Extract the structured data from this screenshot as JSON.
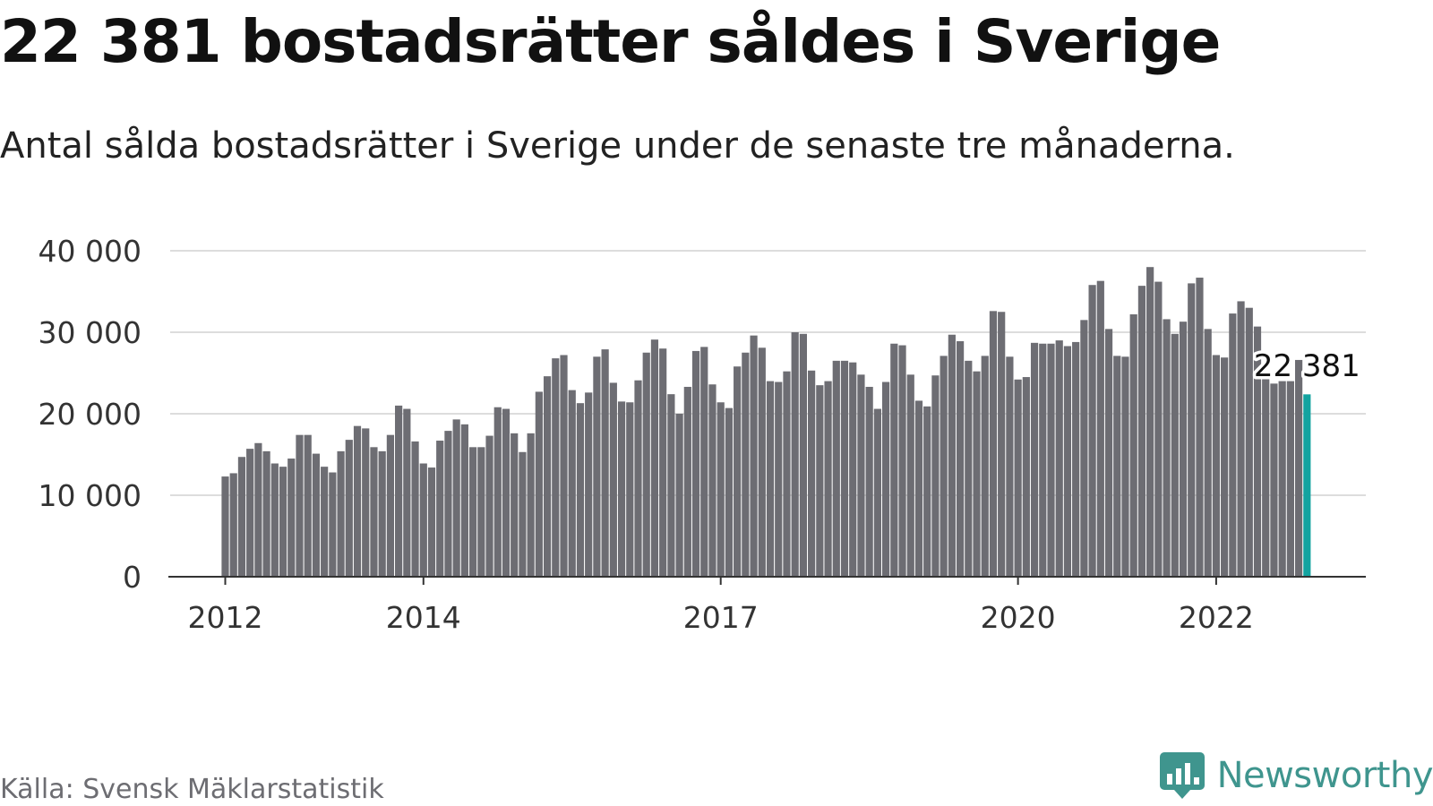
{
  "title": "22 381 bostadsrätter såldes i Sverige",
  "subtitle": "Antal sålda bostadsrätter i Sverige under de senaste tre månaderna.",
  "source": "Källa: Svensk Mäklarstatistik",
  "brand": {
    "name": "Newsworthy",
    "icon": "newsworthy-logo-icon"
  },
  "colors": {
    "bar": "#6d6d73",
    "highlight": "#13a3a0",
    "grid": "#dddddd",
    "axis": "#333333",
    "brand": "#3f958e"
  },
  "chart_data": {
    "type": "bar",
    "start": "2012-01",
    "ylim": [
      0,
      40000
    ],
    "yticks": [
      {
        "value": 0,
        "label": "0"
      },
      {
        "value": 10000,
        "label": "10 000"
      },
      {
        "value": 20000,
        "label": "20 000"
      },
      {
        "value": 30000,
        "label": "30 000"
      },
      {
        "value": 40000,
        "label": "40 000"
      }
    ],
    "xticks": [
      {
        "index": 0,
        "label": "2012"
      },
      {
        "index": 24,
        "label": "2014"
      },
      {
        "index": 60,
        "label": "2017"
      },
      {
        "index": 96,
        "label": "2020"
      },
      {
        "index": 120,
        "label": "2022"
      }
    ],
    "grid": true,
    "annotation": {
      "label": "22 381",
      "index": 131
    },
    "values": [
      12300,
      12700,
      14700,
      15700,
      16400,
      15400,
      13900,
      13500,
      14500,
      17400,
      17400,
      15100,
      13500,
      12800,
      15400,
      16800,
      18500,
      18200,
      15900,
      15400,
      17400,
      21000,
      20600,
      16600,
      13900,
      13400,
      16700,
      17900,
      19300,
      18700,
      15900,
      15900,
      17300,
      20800,
      20600,
      17600,
      15300,
      17600,
      22700,
      24600,
      26800,
      27200,
      22900,
      21300,
      22600,
      27000,
      27900,
      23800,
      21500,
      21400,
      24100,
      27500,
      29100,
      28000,
      22400,
      20000,
      23300,
      27700,
      28200,
      23600,
      21400,
      20700,
      25800,
      27500,
      29600,
      28100,
      24000,
      23900,
      25200,
      30000,
      29800,
      25300,
      23500,
      24000,
      26500,
      26500,
      26300,
      24800,
      23300,
      20600,
      23900,
      28600,
      28400,
      24800,
      21600,
      20900,
      24700,
      27100,
      29700,
      28900,
      26500,
      25200,
      27100,
      32600,
      32500,
      27000,
      24200,
      24500,
      28700,
      28600,
      28600,
      29000,
      28300,
      28800,
      31500,
      35800,
      36300,
      30400,
      27100,
      27000,
      32200,
      35700,
      38000,
      36200,
      31600,
      29800,
      31300,
      36000,
      36700,
      30400,
      27200,
      26900,
      32300,
      33800,
      33000,
      30700,
      24800,
      23700,
      24000,
      24000,
      26600,
      22381
    ]
  }
}
